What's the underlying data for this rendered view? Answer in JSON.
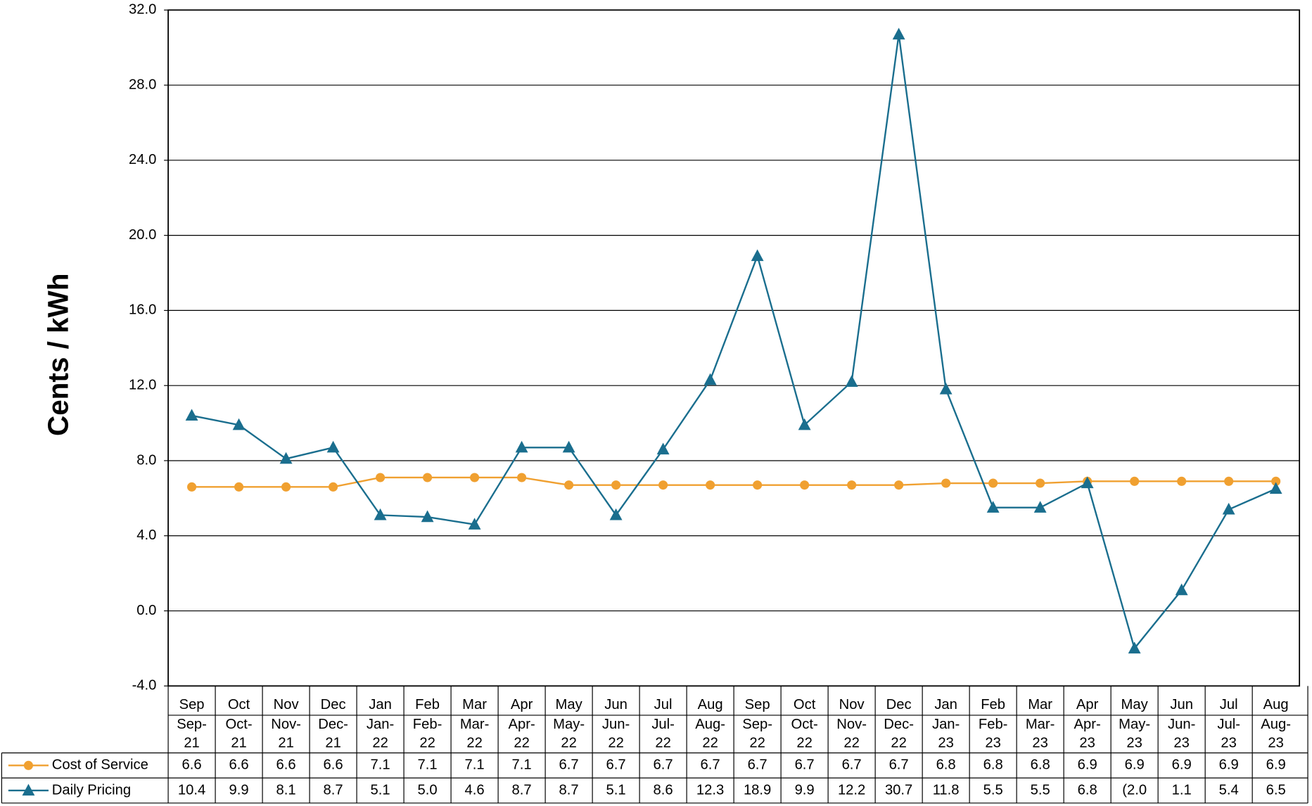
{
  "chart_data": {
    "type": "line",
    "y_label": "Cents / kWh",
    "categories": [
      "Sep",
      "Oct",
      "Nov",
      "Dec",
      "Jan",
      "Feb",
      "Mar",
      "Apr",
      "May",
      "Jun",
      "Jul",
      "Aug",
      "Sep",
      "Oct",
      "Nov",
      "Dec",
      "Jan",
      "Feb",
      "Mar",
      "Apr",
      "May",
      "Jun",
      "Jul",
      "Aug"
    ],
    "periods": [
      "Sep-21",
      "Oct-21",
      "Nov-21",
      "Dec-21",
      "Jan-22",
      "Feb-22",
      "Mar-22",
      "Apr-22",
      "May-22",
      "Jun-22",
      "Jul-22",
      "Aug-22",
      "Sep-22",
      "Oct-22",
      "Nov-22",
      "Dec-22",
      "Jan-23",
      "Feb-23",
      "Mar-23",
      "Apr-23",
      "May-23",
      "Jun-23",
      "Jul-23",
      "Aug-23"
    ],
    "series": [
      {
        "name": "Cost of Service",
        "color": "#f0a030",
        "marker": "circle",
        "values": [
          6.6,
          6.6,
          6.6,
          6.6,
          7.1,
          7.1,
          7.1,
          7.1,
          6.7,
          6.7,
          6.7,
          6.7,
          6.7,
          6.7,
          6.7,
          6.7,
          6.8,
          6.8,
          6.8,
          6.9,
          6.9,
          6.9,
          6.9,
          6.9
        ],
        "value_labels": [
          "6.6",
          "6.6",
          "6.6",
          "6.6",
          "7.1",
          "7.1",
          "7.1",
          "7.1",
          "6.7",
          "6.7",
          "6.7",
          "6.7",
          "6.7",
          "6.7",
          "6.7",
          "6.7",
          "6.8",
          "6.8",
          "6.8",
          "6.9",
          "6.9",
          "6.9",
          "6.9",
          "6.9"
        ]
      },
      {
        "name": "Daily Pricing",
        "color": "#1a6e8e",
        "marker": "triangle",
        "values": [
          10.4,
          9.9,
          8.1,
          8.7,
          5.1,
          5.0,
          4.6,
          8.7,
          8.7,
          5.1,
          8.6,
          12.3,
          18.9,
          9.9,
          12.2,
          30.7,
          11.8,
          5.5,
          5.5,
          6.8,
          -2.0,
          1.1,
          5.4,
          6.5
        ],
        "value_labels": [
          "10.4",
          "9.9",
          "8.1",
          "8.7",
          "5.1",
          "5.0",
          "4.6",
          "8.7",
          "8.7",
          "5.1",
          "8.6",
          "12.3",
          "18.9",
          "9.9",
          "12.2",
          "30.7",
          "11.8",
          "5.5",
          "5.5",
          "6.8",
          "(2.0",
          "1.1",
          "5.4",
          "6.5"
        ]
      }
    ],
    "ylim": [
      -4,
      32
    ],
    "yticks": [
      {
        "value": -4,
        "label": "-4.0"
      },
      {
        "value": 0,
        "label": "0.0"
      },
      {
        "value": 4,
        "label": "4.0"
      },
      {
        "value": 8,
        "label": "8.0"
      },
      {
        "value": 12,
        "label": "12.0"
      },
      {
        "value": 16,
        "label": "16.0"
      },
      {
        "value": 20,
        "label": "20.0"
      },
      {
        "value": 24,
        "label": "24.0"
      },
      {
        "value": 28,
        "label": "28.0"
      },
      {
        "value": 32,
        "label": "32.0"
      }
    ],
    "grid": true
  }
}
